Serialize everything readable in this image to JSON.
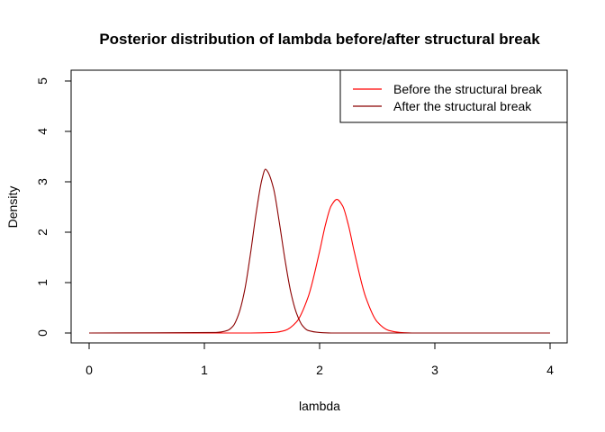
{
  "chart_data": {
    "type": "line",
    "title": "Posterior distribution of lambda before/after structural break",
    "xlabel": "lambda",
    "ylabel": "Density",
    "xlim": [
      0,
      4
    ],
    "ylim": [
      0,
      5
    ],
    "xticks": [
      0,
      1,
      2,
      3,
      4
    ],
    "yticks": [
      0,
      1,
      2,
      3,
      4,
      5
    ],
    "grid": false,
    "legend": "top-right",
    "series": [
      {
        "name": "Before the structural break",
        "color": "#ff0000",
        "x": [
          0,
          1.4,
          1.6,
          1.7,
          1.8,
          1.9,
          2.0,
          2.05,
          2.1,
          2.15,
          2.2,
          2.25,
          2.3,
          2.4,
          2.5,
          2.6,
          2.7,
          2.8,
          3.0,
          4.0
        ],
        "y": [
          0,
          0.0,
          0.01,
          0.05,
          0.22,
          0.71,
          1.62,
          2.14,
          2.52,
          2.65,
          2.52,
          2.14,
          1.62,
          0.71,
          0.22,
          0.05,
          0.01,
          0.0,
          0,
          0
        ]
      },
      {
        "name": "After the structural break",
        "color": "#8b0000",
        "x": [
          0,
          1.1,
          1.2,
          1.25,
          1.3,
          1.35,
          1.4,
          1.45,
          1.5,
          1.53,
          1.55,
          1.6,
          1.65,
          1.7,
          1.75,
          1.8,
          1.85,
          1.9,
          2.0,
          2.1,
          2.2,
          4.0
        ],
        "y": [
          0,
          0.01,
          0.05,
          0.14,
          0.39,
          0.85,
          1.57,
          2.39,
          3.05,
          3.25,
          3.2,
          2.87,
          2.2,
          1.45,
          0.81,
          0.39,
          0.15,
          0.05,
          0.01,
          0.0,
          0,
          0
        ]
      }
    ]
  }
}
